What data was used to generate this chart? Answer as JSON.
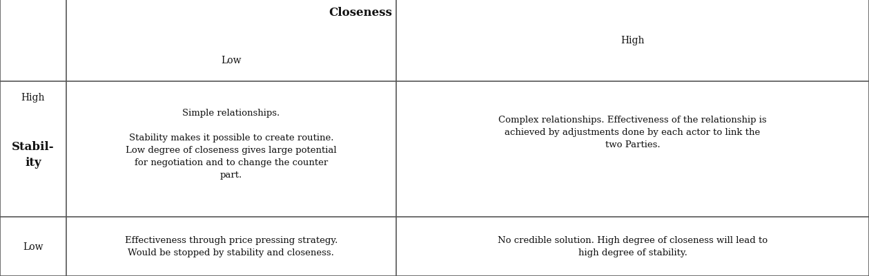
{
  "bg_color": "#ffffff",
  "border_color": "#555555",
  "c0": 0.0,
  "c1": 0.076,
  "c2": 0.456,
  "c3": 1.0,
  "r0": 1.0,
  "r1": 0.705,
  "r2": 0.215,
  "r3": 0.0,
  "header_closeness": "Closeness",
  "header_low": "Low",
  "header_high": "High",
  "row_high_label": "High",
  "row_stability_label": "Stabil-\nity",
  "row_low_label": "Low",
  "cell_high_low": "Simple relationships.\n\nStability makes it possible to create routine.\nLow degree of closeness gives large potential\nfor negotiation and to change the counter\npart.",
  "cell_high_high": "Complex relationships. Effectiveness of the relationship is\nachieved by adjustments done by each actor to link the\ntwo Parties.",
  "cell_low_low": "Effectiveness through price pressing strategy.\nWould be stopped by stability and closeness.",
  "cell_low_high": "No credible solution. High degree of closeness will lead to\nhigh degree of stability.",
  "font_size_header": 12,
  "font_size_subheader": 10,
  "font_size_label": 10,
  "font_size_stability": 12,
  "font_size_cell": 9.5,
  "text_color": "#111111",
  "line_width": 1.2
}
